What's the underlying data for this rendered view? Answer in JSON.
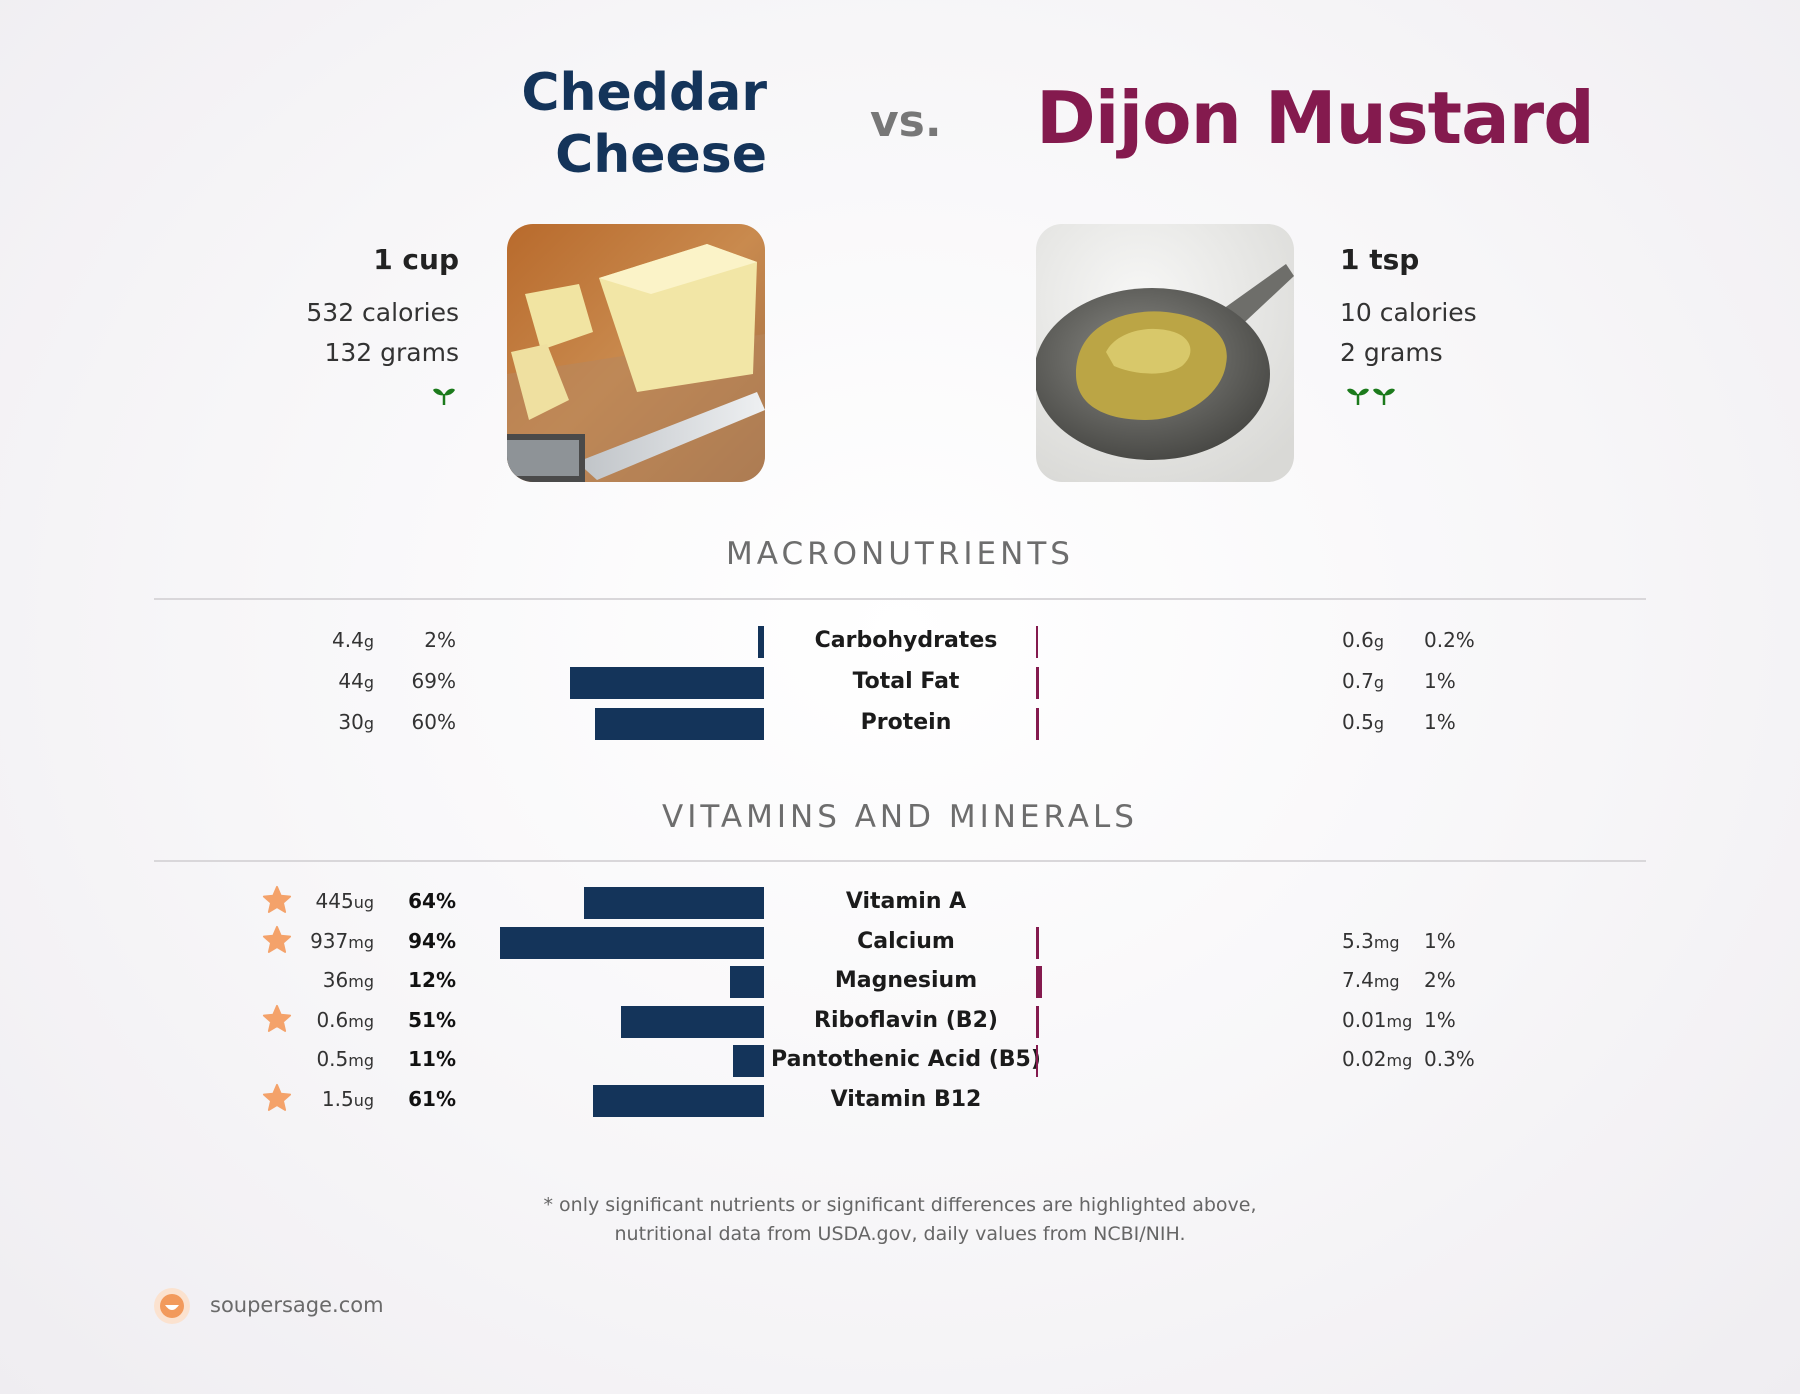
{
  "left_food": {
    "name_line1": "Cheddar",
    "name_line2": "Cheese",
    "serving": "1 cup",
    "calories": "532 calories",
    "grams": "132 grams",
    "color": "#14345a",
    "sprout_count": 1
  },
  "vs_label": "vs.",
  "right_food": {
    "name": "Dijon Mustard",
    "serving": "1 tsp",
    "calories": "10 calories",
    "grams": "2 grams",
    "color": "#841a4e",
    "sprout_count": 2
  },
  "sections": {
    "macros_title": "MACRONUTRIENTS",
    "vitamins_title": "VITAMINS AND MINERALS"
  },
  "chart_data": {
    "type": "bar",
    "orientation": "diverging-horizontal",
    "series": [
      {
        "name": "Cheddar Cheese",
        "color": "#14345a"
      },
      {
        "name": "Dijon Mustard",
        "color": "#841a4e"
      }
    ],
    "macronutrients": [
      {
        "name": "Carbohydrates",
        "left_amount": "4.4",
        "left_unit": "g",
        "left_pct": "2%",
        "left_value": 2,
        "right_amount": "0.6",
        "right_unit": "g",
        "right_pct": "0.2%",
        "right_value": 0.2,
        "left_star": false,
        "bold": false
      },
      {
        "name": "Total Fat",
        "left_amount": "44",
        "left_unit": "g",
        "left_pct": "69%",
        "left_value": 69,
        "right_amount": "0.7",
        "right_unit": "g",
        "right_pct": "1%",
        "right_value": 1,
        "left_star": false,
        "bold": false
      },
      {
        "name": "Protein",
        "left_amount": "30",
        "left_unit": "g",
        "left_pct": "60%",
        "left_value": 60,
        "right_amount": "0.5",
        "right_unit": "g",
        "right_pct": "1%",
        "right_value": 1,
        "left_star": false,
        "bold": false
      }
    ],
    "vitamins": [
      {
        "name": "Vitamin A",
        "left_amount": "445",
        "left_unit": "ug",
        "left_pct": "64%",
        "left_value": 64,
        "right_amount": "",
        "right_unit": "",
        "right_pct": "",
        "right_value": 0,
        "left_star": true,
        "bold": true
      },
      {
        "name": "Calcium",
        "left_amount": "937",
        "left_unit": "mg",
        "left_pct": "94%",
        "left_value": 94,
        "right_amount": "5.3",
        "right_unit": "mg",
        "right_pct": "1%",
        "right_value": 1,
        "left_star": true,
        "bold": true
      },
      {
        "name": "Magnesium",
        "left_amount": "36",
        "left_unit": "mg",
        "left_pct": "12%",
        "left_value": 12,
        "right_amount": "7.4",
        "right_unit": "mg",
        "right_pct": "2%",
        "right_value": 2,
        "left_star": false,
        "bold": true
      },
      {
        "name": "Riboflavin (B2)",
        "left_amount": "0.6",
        "left_unit": "mg",
        "left_pct": "51%",
        "left_value": 51,
        "right_amount": "0.01",
        "right_unit": "mg",
        "right_pct": "1%",
        "right_value": 1,
        "left_star": true,
        "bold": true
      },
      {
        "name": "Pantothenic Acid (B5)",
        "left_amount": "0.5",
        "left_unit": "mg",
        "left_pct": "11%",
        "left_value": 11,
        "right_amount": "0.02",
        "right_unit": "mg",
        "right_pct": "0.3%",
        "right_value": 0.3,
        "left_star": false,
        "bold": true
      },
      {
        "name": "Vitamin B12",
        "left_amount": "1.5",
        "left_unit": "ug",
        "left_pct": "61%",
        "left_value": 61,
        "right_amount": "",
        "right_unit": "",
        "right_pct": "",
        "right_value": 0,
        "left_star": true,
        "bold": true
      }
    ],
    "max_value": 100
  },
  "footnote": {
    "line1": "* only significant nutrients or significant differences are highlighted above,",
    "line2": "nutritional data from USDA.gov, daily values from NCBI/NIH."
  },
  "brand": "soupersage.com",
  "colors": {
    "star": "#f4a26a",
    "sprout": "#1c7a1c"
  }
}
